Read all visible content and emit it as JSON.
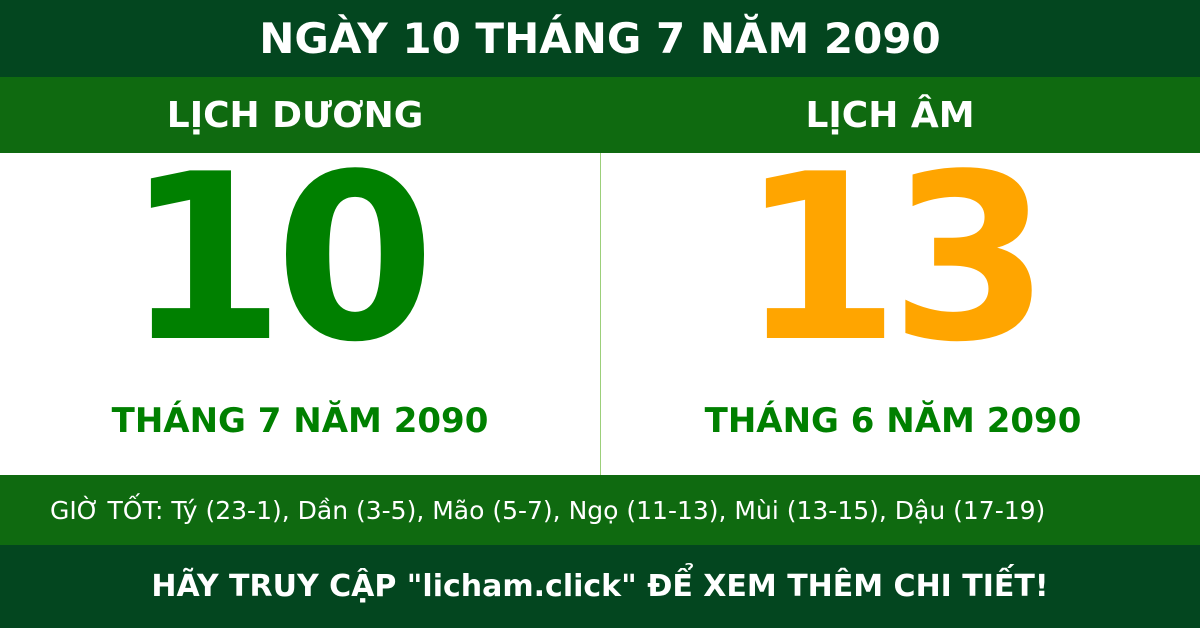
{
  "title": "NGÀY 10 THÁNG 7 NĂM 2090",
  "solar": {
    "label": "LỊCH DƯƠNG",
    "day": "10",
    "month_year": "THÁNG 7 NĂM 2090",
    "color": "#008000"
  },
  "lunar": {
    "label": "LỊCH ÂM",
    "day": "13",
    "month_year": "THÁNG 6 NĂM 2090",
    "color": "#ffa500"
  },
  "good_hours": "GIỜ TỐT: Tý (23-1), Dần (3-5), Mão (5-7), Ngọ (11-13), Mùi (13-15), Dậu (17-19)",
  "footer": "HÃY TRUY CẬP \"licham.click\" ĐỂ XEM THÊM CHI TIẾT!",
  "colors": {
    "dark_green": "#03461f",
    "green": "#0f6a10"
  }
}
